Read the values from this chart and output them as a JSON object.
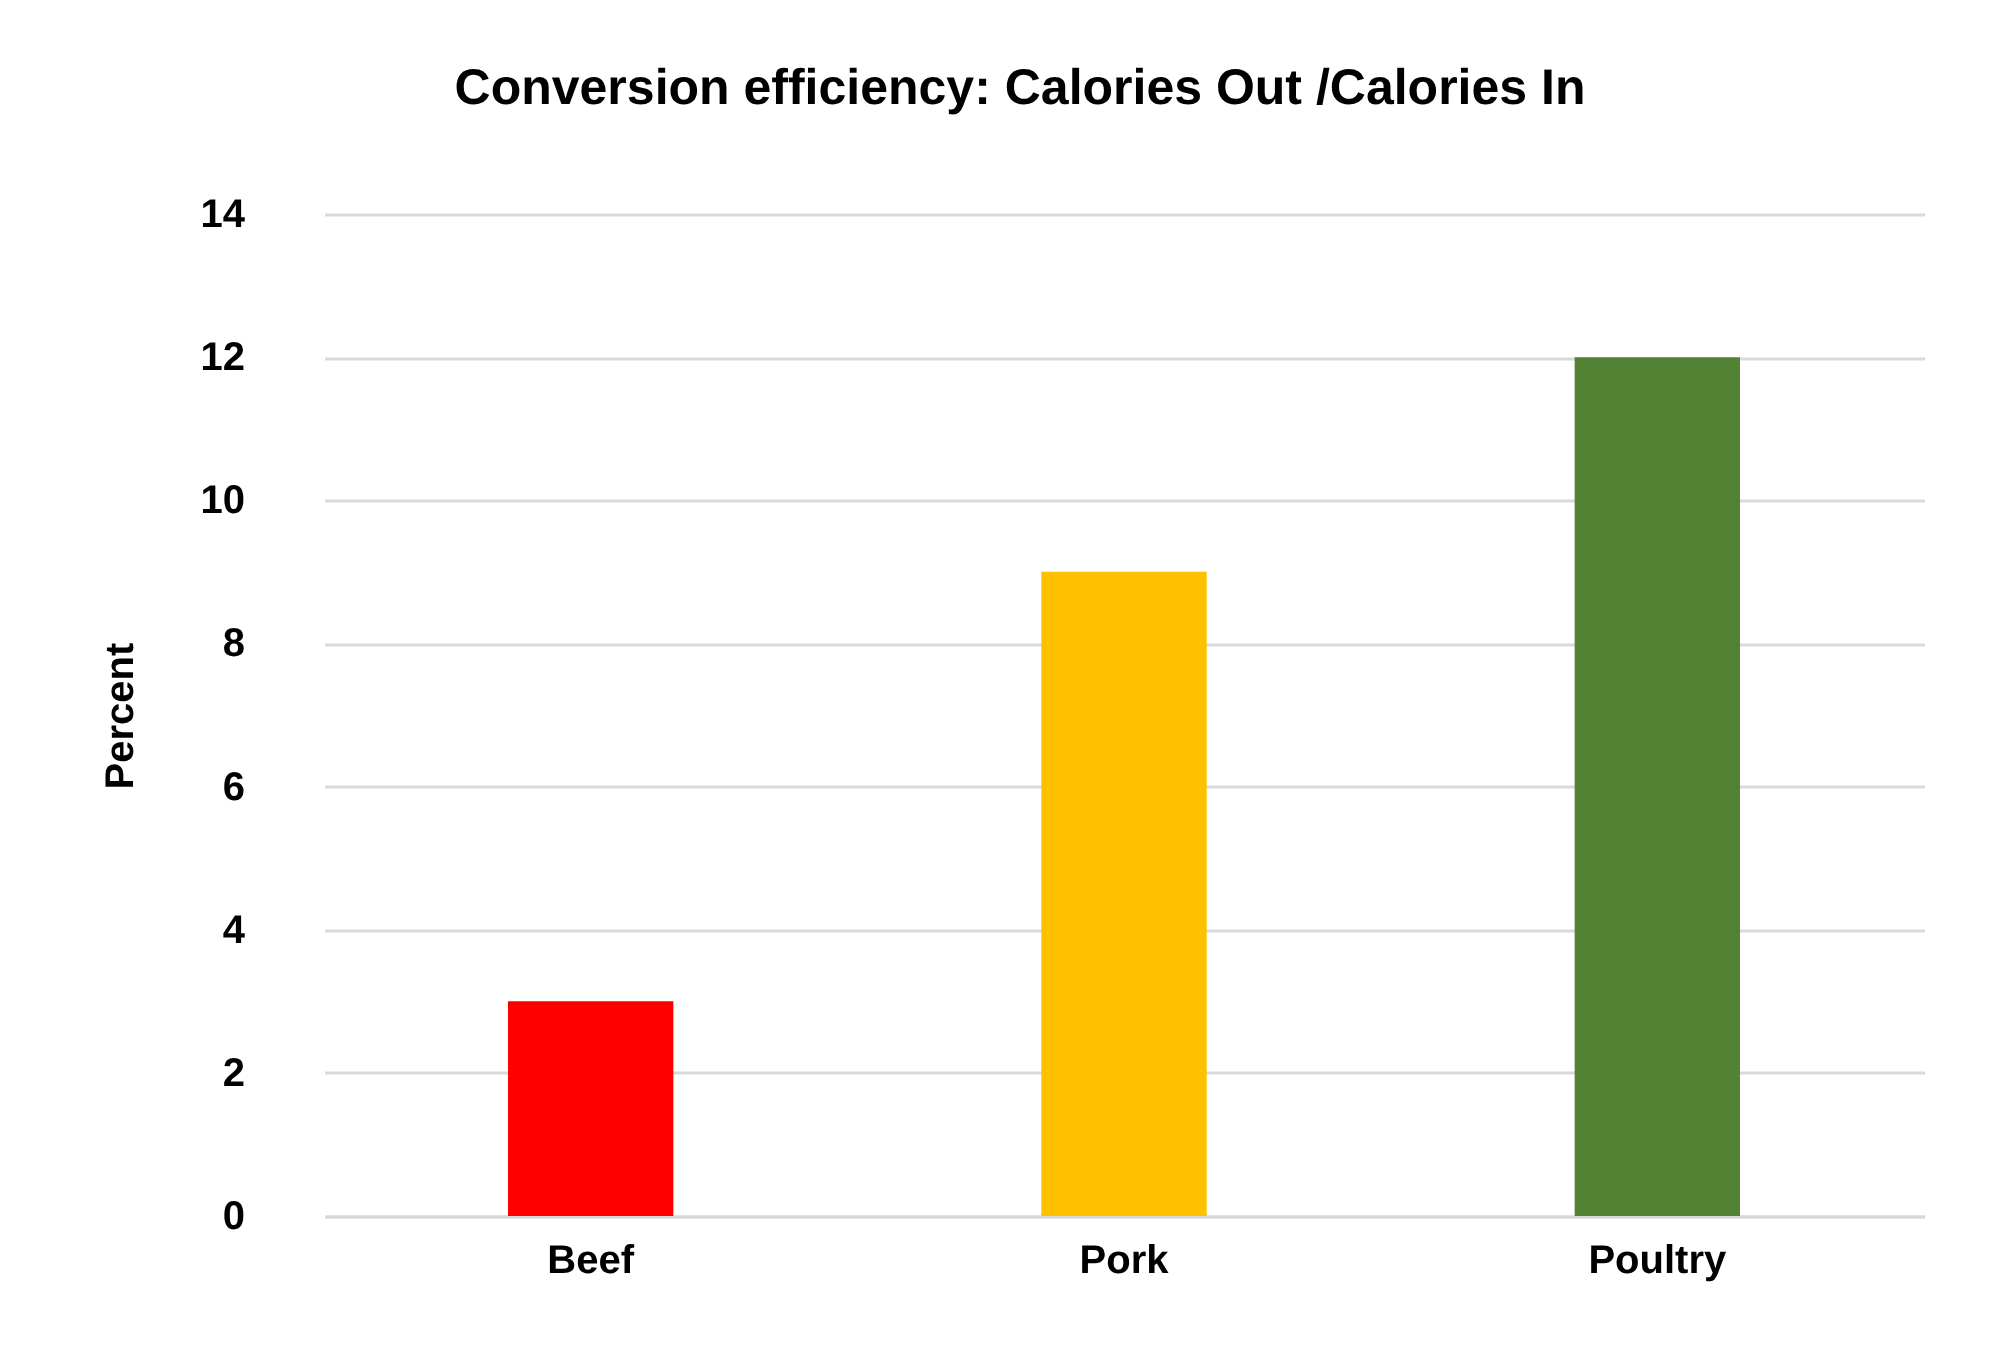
{
  "chart_data": {
    "type": "bar",
    "title": "Conversion efficiency: Calories Out /Calories In",
    "ylabel": "Percent",
    "categories": [
      "Beef",
      "Pork",
      "Poultry"
    ],
    "values": [
      3,
      9,
      12
    ],
    "colors": [
      "#ff0000",
      "#ffc000",
      "#548235"
    ],
    "ylim": [
      0,
      14
    ],
    "yticks": [
      0,
      2,
      4,
      6,
      8,
      10,
      12,
      14
    ],
    "grid": "y"
  }
}
